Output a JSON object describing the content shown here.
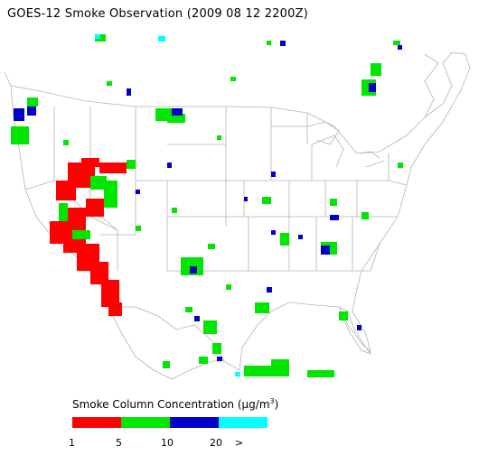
{
  "title": "GOES-12 Smoke Observation (2009 08 12  2200Z)",
  "legend": {
    "title_prefix": "Smoke Column Concentration (",
    "mu": "μ",
    "unit_rest": "g/m",
    "sup": "3",
    "title_suffix": ")",
    "colors": [
      "#ff0000",
      "#00e600",
      "#0000c8",
      "#00ffff"
    ],
    "ticks": [
      "1",
      "5",
      "10",
      "20",
      ">"
    ]
  },
  "map": {
    "land_color": "#ffffff",
    "boundary_color": "#b4b4b4",
    "bin_names": [
      "1-5",
      "5-10",
      "10-20",
      ">20"
    ]
  }
}
